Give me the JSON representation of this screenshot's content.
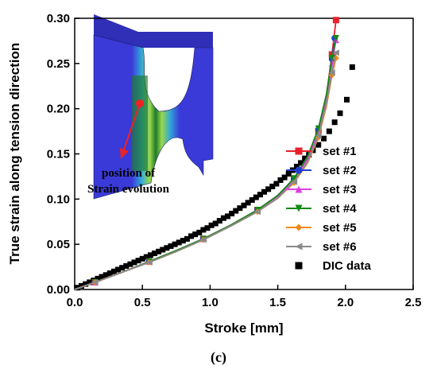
{
  "chart_data": {
    "type": "line",
    "xlabel": "Stroke [mm]",
    "ylabel": "True strain along tension direction",
    "xlim": [
      0.0,
      2.5
    ],
    "ylim": [
      0.0,
      0.3
    ],
    "xticks": [
      0.0,
      0.5,
      1.0,
      1.5,
      2.0,
      2.5
    ],
    "yticks": [
      0.0,
      0.05,
      0.1,
      0.15,
      0.2,
      0.25,
      0.3
    ],
    "xtick_labels": [
      "0.0",
      "0.5",
      "1.0",
      "1.5",
      "2.0",
      "2.5"
    ],
    "ytick_labels": [
      "0.00",
      "0.05",
      "0.10",
      "0.15",
      "0.20",
      "0.25",
      "0.30"
    ],
    "grid": false,
    "legend_position": "right",
    "series": [
      {
        "name": "set #1",
        "color": "#e8202a",
        "marker": "square",
        "x": [
          0.0,
          0.15,
          0.35,
          0.55,
          0.75,
          0.95,
          1.15,
          1.35,
          1.5,
          1.62,
          1.72,
          1.8,
          1.86,
          1.9,
          1.93
        ],
        "y": [
          0.0,
          0.008,
          0.019,
          0.031,
          0.043,
          0.056,
          0.071,
          0.088,
          0.104,
          0.122,
          0.145,
          0.175,
          0.215,
          0.26,
          0.298
        ]
      },
      {
        "name": "set #2",
        "color": "#1f3fd0",
        "marker": "circle",
        "x": [
          0.0,
          0.15,
          0.35,
          0.55,
          0.75,
          0.95,
          1.15,
          1.35,
          1.5,
          1.62,
          1.72,
          1.8,
          1.86,
          1.9,
          1.92
        ],
        "y": [
          0.0,
          0.008,
          0.019,
          0.031,
          0.043,
          0.056,
          0.071,
          0.088,
          0.104,
          0.122,
          0.146,
          0.177,
          0.215,
          0.255,
          0.278
        ]
      },
      {
        "name": "set #3",
        "color": "#e040e0",
        "marker": "triangle-up",
        "x": [
          0.0,
          0.15,
          0.35,
          0.55,
          0.75,
          0.95,
          1.15,
          1.35,
          1.5,
          1.62,
          1.72,
          1.8,
          1.86,
          1.9,
          1.93
        ],
        "y": [
          0.0,
          0.008,
          0.019,
          0.031,
          0.043,
          0.056,
          0.071,
          0.088,
          0.103,
          0.121,
          0.144,
          0.174,
          0.212,
          0.25,
          0.276
        ]
      },
      {
        "name": "set #4",
        "color": "#138a13",
        "marker": "triangle-down",
        "x": [
          0.0,
          0.15,
          0.35,
          0.55,
          0.75,
          0.95,
          1.15,
          1.35,
          1.5,
          1.62,
          1.72,
          1.8,
          1.86,
          1.9,
          1.93
        ],
        "y": [
          0.0,
          0.008,
          0.019,
          0.031,
          0.043,
          0.056,
          0.071,
          0.088,
          0.104,
          0.123,
          0.147,
          0.178,
          0.216,
          0.256,
          0.278
        ]
      },
      {
        "name": "set #5",
        "color": "#f08a1c",
        "marker": "diamond",
        "x": [
          0.0,
          0.15,
          0.35,
          0.55,
          0.75,
          0.95,
          1.15,
          1.35,
          1.5,
          1.62,
          1.72,
          1.8,
          1.86,
          1.9,
          1.93
        ],
        "y": [
          0.0,
          0.008,
          0.019,
          0.03,
          0.042,
          0.055,
          0.07,
          0.086,
          0.101,
          0.118,
          0.14,
          0.168,
          0.203,
          0.237,
          0.256
        ]
      },
      {
        "name": "set #6",
        "color": "#8a8a8a",
        "marker": "triangle-left",
        "x": [
          0.0,
          0.15,
          0.35,
          0.55,
          0.75,
          0.95,
          1.15,
          1.35,
          1.5,
          1.62,
          1.72,
          1.8,
          1.86,
          1.9,
          1.93
        ],
        "y": [
          0.0,
          0.008,
          0.019,
          0.03,
          0.042,
          0.055,
          0.07,
          0.086,
          0.101,
          0.119,
          0.141,
          0.17,
          0.206,
          0.24,
          0.262
        ]
      },
      {
        "name": "DIC data",
        "color": "#000000",
        "marker": "square",
        "line": false,
        "x": [
          0.02,
          0.05,
          0.08,
          0.11,
          0.14,
          0.17,
          0.2,
          0.23,
          0.26,
          0.29,
          0.32,
          0.35,
          0.38,
          0.41,
          0.44,
          0.47,
          0.5,
          0.53,
          0.56,
          0.59,
          0.62,
          0.65,
          0.68,
          0.71,
          0.74,
          0.77,
          0.8,
          0.83,
          0.86,
          0.89,
          0.92,
          0.95,
          0.98,
          1.01,
          1.04,
          1.07,
          1.1,
          1.13,
          1.16,
          1.19,
          1.22,
          1.25,
          1.28,
          1.31,
          1.34,
          1.37,
          1.4,
          1.43,
          1.46,
          1.49,
          1.52,
          1.55,
          1.58,
          1.61,
          1.64,
          1.67,
          1.7,
          1.73,
          1.76,
          1.8,
          1.84,
          1.88,
          1.92,
          1.96,
          2.01,
          2.05
        ],
        "y": [
          0.002,
          0.004,
          0.006,
          0.008,
          0.01,
          0.012,
          0.014,
          0.016,
          0.018,
          0.02,
          0.022,
          0.024,
          0.026,
          0.028,
          0.03,
          0.032,
          0.034,
          0.036,
          0.038,
          0.04,
          0.042,
          0.044,
          0.046,
          0.048,
          0.05,
          0.052,
          0.054,
          0.056,
          0.059,
          0.061,
          0.063,
          0.066,
          0.068,
          0.071,
          0.073,
          0.076,
          0.079,
          0.081,
          0.084,
          0.087,
          0.09,
          0.093,
          0.096,
          0.099,
          0.102,
          0.105,
          0.108,
          0.111,
          0.114,
          0.117,
          0.121,
          0.124,
          0.128,
          0.132,
          0.136,
          0.14,
          0.145,
          0.149,
          0.154,
          0.16,
          0.167,
          0.175,
          0.185,
          0.195,
          0.21,
          0.246
        ]
      }
    ],
    "annotations": {
      "inset_label_line1": "position of",
      "inset_label_line2": "Strain evolution",
      "panel_label": "(c)"
    }
  }
}
